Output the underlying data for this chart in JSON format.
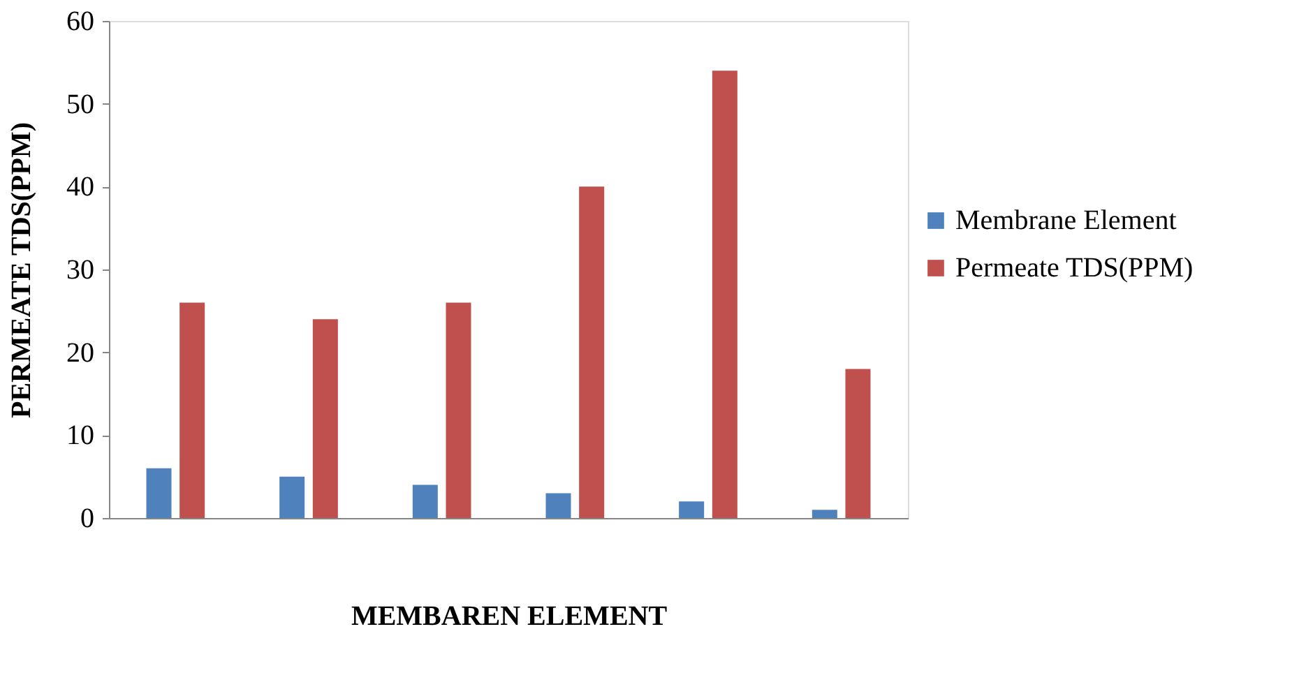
{
  "chart_data": {
    "type": "bar",
    "xlabel": "MEMBAREN ELEMENT",
    "ylabel": "PERMEATE TDS(PPM)",
    "categories": [
      null,
      null,
      null,
      null,
      null,
      null
    ],
    "series": [
      {
        "name": "Membrane Element",
        "color": "#4f81bd",
        "values": [
          6,
          5,
          4,
          3,
          2,
          1
        ]
      },
      {
        "name": "Permeate TDS(PPM)",
        "color": "#c0504d",
        "values": [
          26,
          24,
          26,
          40,
          54,
          18
        ]
      }
    ],
    "ylim": [
      0,
      60
    ],
    "yticks": [
      0,
      10,
      20,
      30,
      40,
      50,
      60
    ],
    "grid": false,
    "legend": "right",
    "tick_labels": "y"
  }
}
